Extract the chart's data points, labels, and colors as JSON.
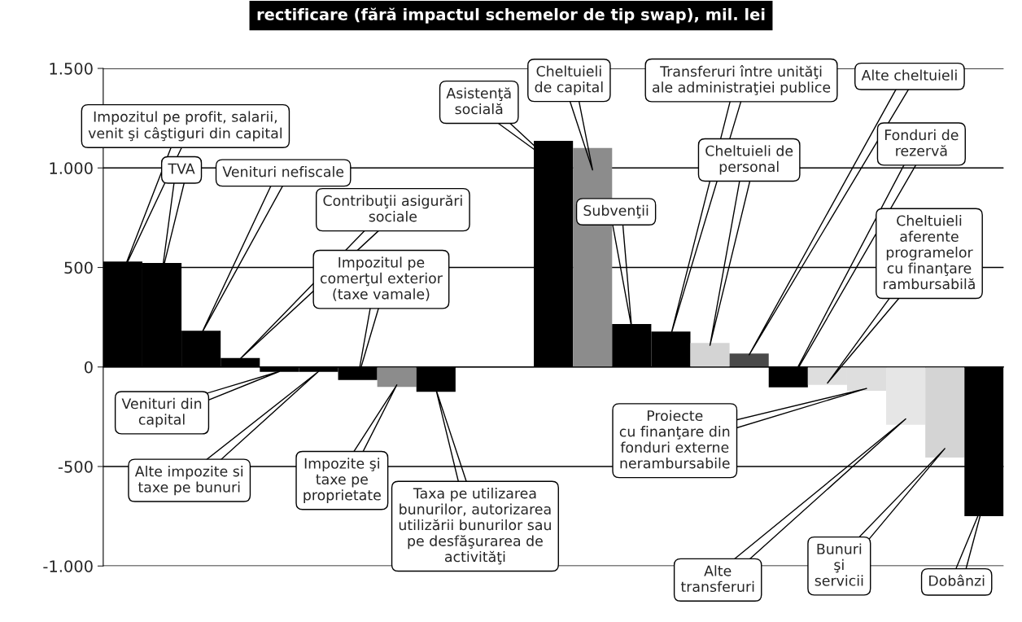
{
  "chart_data": {
    "type": "bar",
    "title": "rectificare (fără impactul schemelor de tip swap), mil. lei",
    "categories": [
      null,
      null,
      null,
      null,
      null,
      null,
      null,
      null,
      null,
      null,
      null,
      null,
      null,
      null,
      null,
      null,
      null,
      null,
      null,
      null,
      null,
      null,
      null
    ],
    "annotations": [
      "Impozitul pe profit, salarii,\nvenit şi câştiguri din capital",
      "TVA",
      "Venituri nefiscale",
      "Contribuţii asigurări\nsociale",
      "Venituri din\ncapital",
      "Alte impozite si\ntaxe pe bunuri",
      "Impozitul pe\ncomerţul exterior\n(taxe vamale)",
      "Impozite şi\ntaxe pe\nproprietate",
      "Taxa pe utilizarea\nbunurilor, autorizarea\nutilizării bunurilor sau\npe desfăşurarea de\nactivităţi",
      "Asistenţă\nsocială",
      "Cheltuieli\nde capital",
      "Subvenţii",
      "Transferuri între unităţi\nale administraţiei publice",
      "Cheltuieli de\npersonal",
      "Alte cheltuieli",
      "Fonduri de\nrezervă",
      "Cheltuieli\naferente\nprogramelor\ncu finanţare\nrambursabilă",
      "Proiecte\ncu finanţare din\nfonduri externe\nnerambursabile",
      "Alte\ntransferuri",
      "Bunuri\nşi\nservicii",
      "Dobânzi"
    ],
    "values": [
      530,
      523,
      182,
      45,
      -25,
      -25,
      -65,
      -100,
      -125,
      null,
      null,
      1136,
      1100,
      216,
      178,
      121,
      68,
      -102,
      -90,
      -120,
      -290,
      -455,
      -750
    ],
    "colors": [
      "#000000",
      "#000000",
      "#000000",
      "#000000",
      "#000000",
      "#000000",
      "#000000",
      "#8c8c8c",
      "#000000",
      "#ffffff",
      "#ffffff",
      "#000000",
      "#8c8c8c",
      "#000000",
      "#000000",
      "#d4d4d4",
      "#4a4a4a",
      "#000000",
      "#dedede",
      "#dedede",
      "#e6e6e6",
      "#d4d4d4",
      "#000000"
    ],
    "ylim": [
      -1000,
      1500
    ],
    "yticks": [
      {
        "value": -1000,
        "label": "-1.000"
      },
      -500,
      0,
      500,
      {
        "value": 1000,
        "label": "1.000"
      },
      {
        "value": 1500,
        "label": "1.500"
      }
    ],
    "grid": "y"
  }
}
